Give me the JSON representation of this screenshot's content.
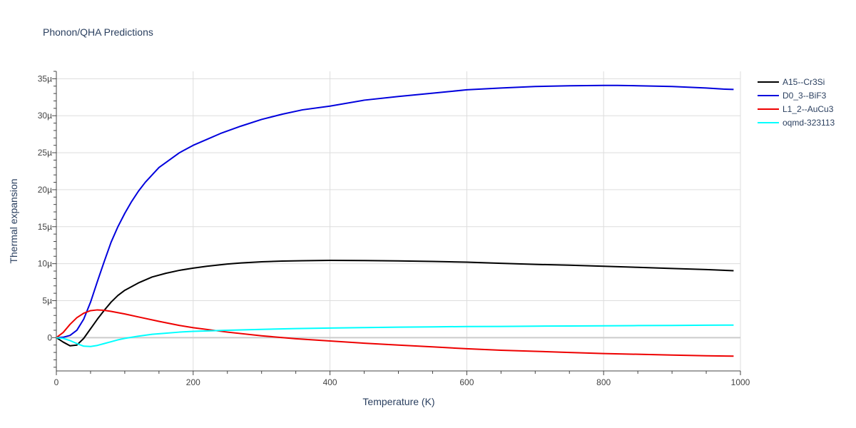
{
  "title": "Phonon/QHA Predictions",
  "chart_data": {
    "type": "line",
    "title": "Phonon/QHA Predictions",
    "xlabel": "Temperature (K)",
    "ylabel": "Thermal expansion",
    "xlim": [
      0,
      1000
    ],
    "ylim": [
      -4.5e-06,
      3.6e-05
    ],
    "grid": true,
    "legend": "top-right",
    "x_ticks": [
      {
        "value": 0,
        "label": "0"
      },
      {
        "value": 200,
        "label": "200"
      },
      {
        "value": 400,
        "label": "400"
      },
      {
        "value": 600,
        "label": "600"
      },
      {
        "value": 800,
        "label": "800"
      },
      {
        "value": 1000,
        "label": "1000"
      }
    ],
    "y_ticks": [
      {
        "value": 0,
        "label": "0"
      },
      {
        "value": 5e-06,
        "label": "5µ"
      },
      {
        "value": 1e-05,
        "label": "10µ"
      },
      {
        "value": 1.5e-05,
        "label": "15µ"
      },
      {
        "value": 2e-05,
        "label": "20µ"
      },
      {
        "value": 2.5e-05,
        "label": "25µ"
      },
      {
        "value": 3e-05,
        "label": "30µ"
      },
      {
        "value": 3.5e-05,
        "label": "35µ"
      }
    ],
    "series": [
      {
        "name": "A15--Cr3Si",
        "color": "#000000",
        "x": [
          0,
          10,
          20,
          30,
          40,
          50,
          60,
          70,
          80,
          90,
          100,
          120,
          140,
          160,
          180,
          200,
          220,
          250,
          270,
          300,
          330,
          360,
          400,
          450,
          500,
          550,
          600,
          650,
          700,
          750,
          800,
          850,
          900,
          950,
          990
        ],
        "y": [
          0,
          -6e-07,
          -1.1e-06,
          -1e-06,
          -1e-07,
          1.2e-06,
          2.5e-06,
          3.7e-06,
          4.8e-06,
          5.7e-06,
          6.4e-06,
          7.4e-06,
          8.2e-06,
          8.7e-06,
          9.1e-06,
          9.4e-06,
          9.65e-06,
          9.95e-06,
          1.01e-05,
          1.025e-05,
          1.035e-05,
          1.04e-05,
          1.045e-05,
          1.042e-05,
          1.038e-05,
          1.03e-05,
          1.02e-05,
          1.005e-05,
          9.9e-06,
          9.8e-06,
          9.65e-06,
          9.5e-06,
          9.35e-06,
          9.2e-06,
          9.05e-06
        ]
      },
      {
        "name": "D0_3--BiF3",
        "color": "#0000dd",
        "x": [
          0,
          10,
          20,
          30,
          40,
          50,
          60,
          70,
          80,
          90,
          100,
          110,
          120,
          130,
          140,
          150,
          165,
          180,
          200,
          220,
          240,
          270,
          300,
          330,
          360,
          400,
          450,
          500,
          550,
          600,
          650,
          700,
          750,
          800,
          820,
          850,
          900,
          950,
          975,
          990
        ],
        "y": [
          0,
          5e-08,
          3e-07,
          1e-06,
          2.5e-06,
          4.8e-06,
          7.6e-06,
          1.03e-05,
          1.29e-05,
          1.5e-05,
          1.68e-05,
          1.84e-05,
          1.98e-05,
          2.1e-05,
          2.2e-05,
          2.3e-05,
          2.4e-05,
          2.5e-05,
          2.6e-05,
          2.68e-05,
          2.76e-05,
          2.86e-05,
          2.95e-05,
          3.02e-05,
          3.08e-05,
          3.13e-05,
          3.21e-05,
          3.26e-05,
          3.305e-05,
          3.35e-05,
          3.375e-05,
          3.395e-05,
          3.405e-05,
          3.41e-05,
          3.41e-05,
          3.405e-05,
          3.395e-05,
          3.375e-05,
          3.36e-05,
          3.355e-05
        ]
      },
      {
        "name": "L1_2--AuCu3",
        "color": "#ee0000",
        "x": [
          0,
          10,
          20,
          30,
          40,
          50,
          60,
          70,
          80,
          100,
          120,
          150,
          180,
          200,
          250,
          300,
          350,
          400,
          450,
          500,
          550,
          600,
          650,
          700,
          750,
          800,
          850,
          900,
          950,
          990
        ],
        "y": [
          0,
          7e-07,
          1.8e-06,
          2.7e-06,
          3.3e-06,
          3.65e-06,
          3.75e-06,
          3.7e-06,
          3.55e-06,
          3.2e-06,
          2.8e-06,
          2.2e-06,
          1.65e-06,
          1.35e-06,
          7.5e-07,
          2.5e-07,
          -1.5e-07,
          -4.5e-07,
          -7.5e-07,
          -1e-06,
          -1.25e-06,
          -1.5e-06,
          -1.7e-06,
          -1.85e-06,
          -2e-06,
          -2.15e-06,
          -2.25e-06,
          -2.35e-06,
          -2.45e-06,
          -2.5e-06
        ]
      },
      {
        "name": "oqmd-323113",
        "color": "#00ffff",
        "x": [
          0,
          10,
          20,
          30,
          40,
          50,
          60,
          70,
          80,
          90,
          100,
          120,
          140,
          160,
          180,
          200,
          250,
          300,
          350,
          400,
          450,
          500,
          550,
          600,
          650,
          700,
          750,
          800,
          850,
          900,
          950,
          990
        ],
        "y": [
          0,
          -1e-07,
          -4e-07,
          -8e-07,
          -1.15e-06,
          -1.2e-06,
          -1.05e-06,
          -8e-07,
          -5.5e-07,
          -3e-07,
          -1e-07,
          2e-07,
          4.5e-07,
          6e-07,
          7.5e-07,
          8.5e-07,
          1e-06,
          1.12e-06,
          1.22e-06,
          1.3e-06,
          1.36e-06,
          1.42e-06,
          1.46e-06,
          1.5e-06,
          1.52e-06,
          1.55e-06,
          1.58e-06,
          1.6e-06,
          1.63e-06,
          1.65e-06,
          1.68e-06,
          1.7e-06
        ]
      }
    ]
  }
}
